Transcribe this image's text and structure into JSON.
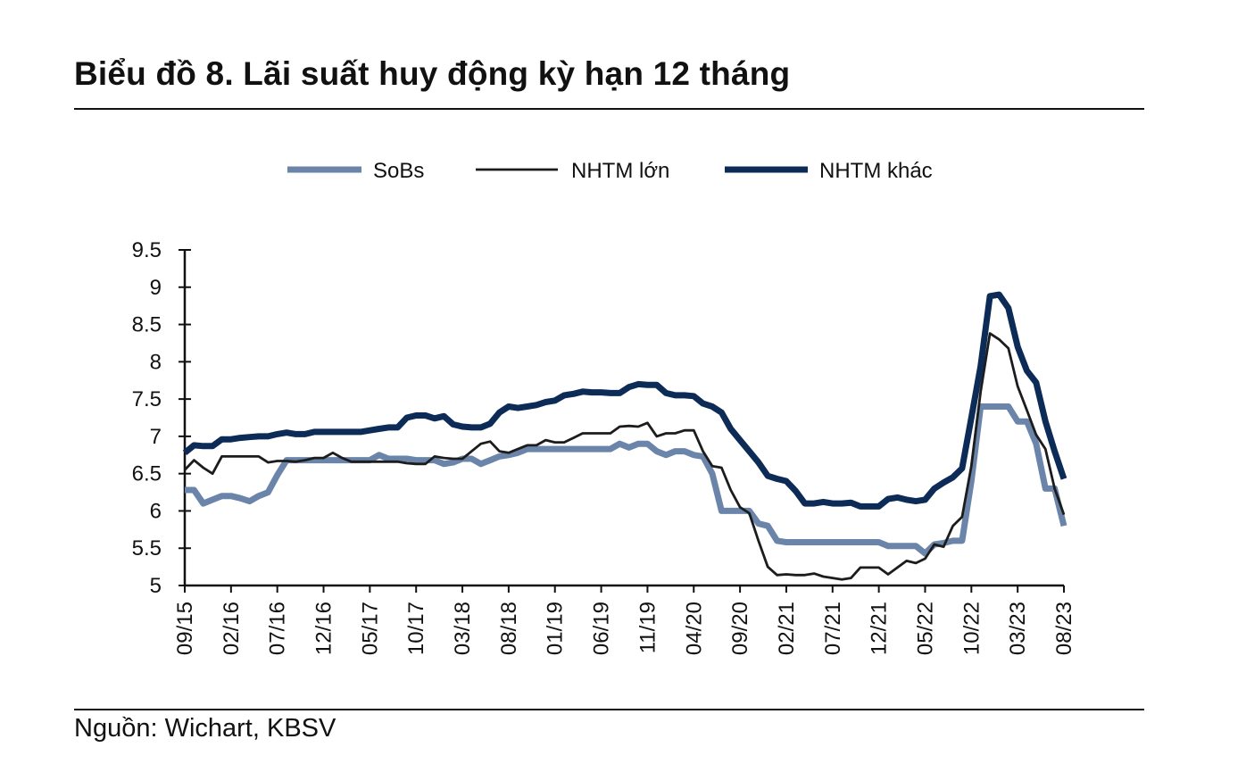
{
  "title": "Biểu đồ 8. Lãi suất huy động kỳ hạn 12 tháng",
  "source": "Nguồn: Wichart, KBSV",
  "chart_data": {
    "type": "line",
    "title": "Biểu đồ 8. Lãi suất huy động kỳ hạn 12 tháng",
    "xlabel": "",
    "ylabel": "",
    "ylim": [
      5,
      9.5
    ],
    "yticks": [
      "5",
      "5.5",
      "6",
      "6.5",
      "7",
      "7.5",
      "8",
      "8.5",
      "9",
      "9.5"
    ],
    "x_start": "09/15",
    "x_end": "08/23",
    "x_frequency": "monthly",
    "xtick_labels": [
      "09/15",
      "02/16",
      "07/16",
      "12/16",
      "05/17",
      "10/17",
      "03/18",
      "08/18",
      "01/19",
      "06/19",
      "11/19",
      "04/20",
      "09/20",
      "02/21",
      "07/21",
      "12/21",
      "05/22",
      "10/22",
      "03/23",
      "08/23"
    ],
    "grid": false,
    "legend": "top",
    "series": [
      {
        "name": "SoBs",
        "color": "#6b84aa",
        "width": "thick",
        "values": [
          6.28,
          6.28,
          6.1,
          6.15,
          6.2,
          6.2,
          6.17,
          6.13,
          6.2,
          6.25,
          6.48,
          6.68,
          6.68,
          6.68,
          6.68,
          6.68,
          6.68,
          6.68,
          6.68,
          6.68,
          6.68,
          6.75,
          6.7,
          6.7,
          6.7,
          6.68,
          6.68,
          6.68,
          6.63,
          6.65,
          6.7,
          6.7,
          6.63,
          6.68,
          6.73,
          6.75,
          6.78,
          6.83,
          6.83,
          6.83,
          6.83,
          6.83,
          6.83,
          6.83,
          6.83,
          6.83,
          6.83,
          6.9,
          6.85,
          6.9,
          6.9,
          6.8,
          6.75,
          6.8,
          6.8,
          6.75,
          6.73,
          6.5,
          6.0,
          6.0,
          6.0,
          6.0,
          5.83,
          5.8,
          5.6,
          5.58,
          5.58,
          5.58,
          5.58,
          5.58,
          5.58,
          5.58,
          5.58,
          5.58,
          5.58,
          5.58,
          5.53,
          5.53,
          5.53,
          5.53,
          5.43,
          5.55,
          5.57,
          5.6,
          5.6,
          6.4,
          7.4,
          7.4,
          7.4,
          7.4,
          7.2,
          7.2,
          6.9,
          6.3,
          6.3,
          5.8
        ]
      },
      {
        "name": "NHTM lớn",
        "color": "#1c1c1c",
        "width": "thin",
        "values": [
          6.55,
          6.68,
          6.58,
          6.5,
          6.73,
          6.73,
          6.73,
          6.73,
          6.73,
          6.65,
          6.67,
          6.67,
          6.66,
          6.68,
          6.71,
          6.71,
          6.78,
          6.71,
          6.66,
          6.66,
          6.66,
          6.66,
          6.66,
          6.66,
          6.64,
          6.63,
          6.63,
          6.73,
          6.71,
          6.7,
          6.7,
          6.8,
          6.9,
          6.93,
          6.8,
          6.78,
          6.83,
          6.88,
          6.88,
          6.95,
          6.92,
          6.92,
          6.98,
          7.04,
          7.04,
          7.04,
          7.04,
          7.13,
          7.14,
          7.13,
          7.18,
          7.0,
          7.04,
          7.04,
          7.08,
          7.08,
          6.8,
          6.6,
          6.58,
          6.28,
          6.05,
          5.97,
          5.6,
          5.25,
          5.14,
          5.15,
          5.14,
          5.14,
          5.16,
          5.12,
          5.1,
          5.08,
          5.1,
          5.24,
          5.24,
          5.24,
          5.15,
          5.24,
          5.33,
          5.3,
          5.36,
          5.55,
          5.52,
          5.8,
          5.92,
          6.6,
          7.6,
          8.38,
          8.3,
          8.18,
          7.67,
          7.35,
          7.02,
          6.83,
          6.3,
          5.95
        ]
      },
      {
        "name": "NHTM khác",
        "color": "#0d2b57",
        "width": "thick",
        "values": [
          6.78,
          6.88,
          6.87,
          6.87,
          6.96,
          6.96,
          6.98,
          6.99,
          7.0,
          7.0,
          7.03,
          7.05,
          7.03,
          7.03,
          7.06,
          7.06,
          7.06,
          7.06,
          7.06,
          7.06,
          7.08,
          7.1,
          7.12,
          7.12,
          7.25,
          7.28,
          7.28,
          7.24,
          7.27,
          7.16,
          7.13,
          7.12,
          7.12,
          7.17,
          7.32,
          7.4,
          7.38,
          7.4,
          7.42,
          7.46,
          7.48,
          7.55,
          7.57,
          7.6,
          7.59,
          7.59,
          7.58,
          7.58,
          7.66,
          7.7,
          7.69,
          7.69,
          7.58,
          7.55,
          7.55,
          7.54,
          7.44,
          7.4,
          7.32,
          7.1,
          6.95,
          6.8,
          6.65,
          6.47,
          6.43,
          6.4,
          6.27,
          6.1,
          6.1,
          6.12,
          6.1,
          6.1,
          6.11,
          6.06,
          6.06,
          6.06,
          6.16,
          6.18,
          6.15,
          6.13,
          6.15,
          6.3,
          6.38,
          6.45,
          6.57,
          7.25,
          7.94,
          8.88,
          8.9,
          8.72,
          8.2,
          7.88,
          7.72,
          7.2,
          6.8,
          6.43
        ]
      }
    ]
  }
}
